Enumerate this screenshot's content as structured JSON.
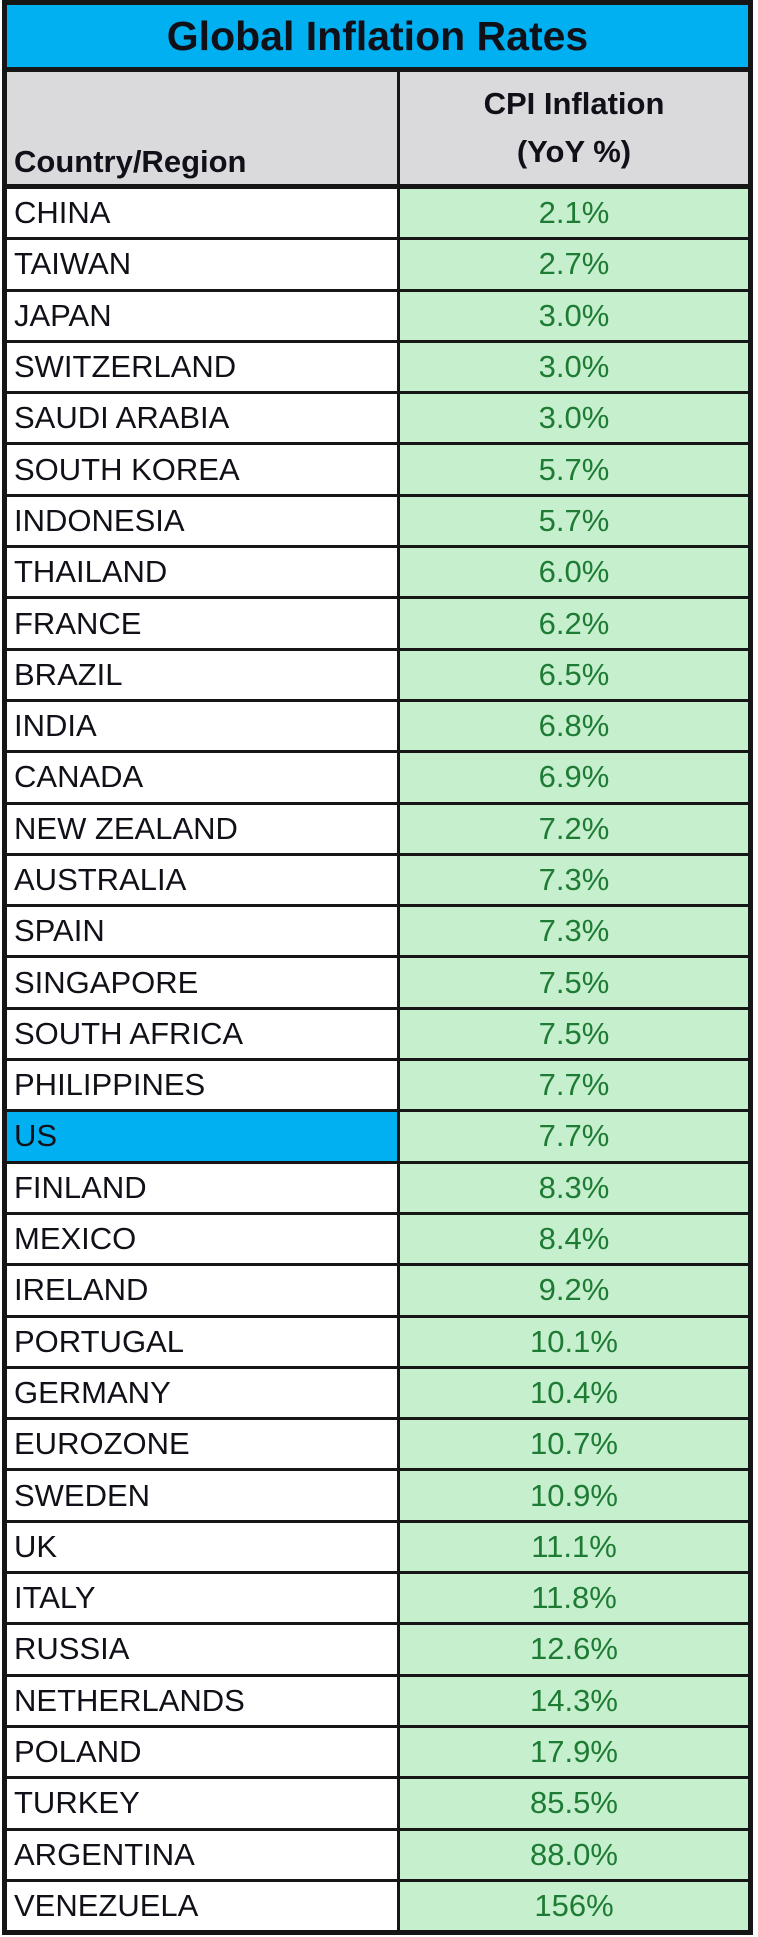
{
  "title": "Global Inflation Rates",
  "header": {
    "country_column": "Country/Region",
    "value_column": "CPI Inflation\n(YoY %)"
  },
  "colors": {
    "title_bg": "#00B0F0",
    "header_bg": "#DAD9DC",
    "value_bg": "#C6EFCE",
    "value_text": "#1E7B34",
    "highlight_bg": "#00B0F0",
    "border": "#161616",
    "text": "#101018"
  },
  "rows": [
    {
      "country": "CHINA",
      "value": "2.1%",
      "highlight": false
    },
    {
      "country": "TAIWAN",
      "value": "2.7%",
      "highlight": false
    },
    {
      "country": "JAPAN",
      "value": "3.0%",
      "highlight": false
    },
    {
      "country": "SWITZERLAND",
      "value": "3.0%",
      "highlight": false
    },
    {
      "country": "SAUDI ARABIA",
      "value": "3.0%",
      "highlight": false
    },
    {
      "country": "SOUTH KOREA",
      "value": "5.7%",
      "highlight": false
    },
    {
      "country": "INDONESIA",
      "value": "5.7%",
      "highlight": false
    },
    {
      "country": "THAILAND",
      "value": "6.0%",
      "highlight": false
    },
    {
      "country": "FRANCE",
      "value": "6.2%",
      "highlight": false
    },
    {
      "country": "BRAZIL",
      "value": "6.5%",
      "highlight": false
    },
    {
      "country": "INDIA",
      "value": "6.8%",
      "highlight": false
    },
    {
      "country": "CANADA",
      "value": "6.9%",
      "highlight": false
    },
    {
      "country": "NEW ZEALAND",
      "value": "7.2%",
      "highlight": false
    },
    {
      "country": "AUSTRALIA",
      "value": "7.3%",
      "highlight": false
    },
    {
      "country": "SPAIN",
      "value": "7.3%",
      "highlight": false
    },
    {
      "country": "SINGAPORE",
      "value": "7.5%",
      "highlight": false
    },
    {
      "country": "SOUTH AFRICA",
      "value": "7.5%",
      "highlight": false
    },
    {
      "country": "PHILIPPINES",
      "value": "7.7%",
      "highlight": false
    },
    {
      "country": "US",
      "value": "7.7%",
      "highlight": true
    },
    {
      "country": "FINLAND",
      "value": "8.3%",
      "highlight": false
    },
    {
      "country": "MEXICO",
      "value": "8.4%",
      "highlight": false
    },
    {
      "country": "IRELAND",
      "value": "9.2%",
      "highlight": false
    },
    {
      "country": "PORTUGAL",
      "value": "10.1%",
      "highlight": false
    },
    {
      "country": "GERMANY",
      "value": "10.4%",
      "highlight": false
    },
    {
      "country": "EUROZONE",
      "value": "10.7%",
      "highlight": false
    },
    {
      "country": "SWEDEN",
      "value": "10.9%",
      "highlight": false
    },
    {
      "country": "UK",
      "value": "11.1%",
      "highlight": false
    },
    {
      "country": "ITALY",
      "value": "11.8%",
      "highlight": false
    },
    {
      "country": "RUSSIA",
      "value": "12.6%",
      "highlight": false
    },
    {
      "country": "NETHERLANDS",
      "value": "14.3%",
      "highlight": false
    },
    {
      "country": "POLAND",
      "value": "17.9%",
      "highlight": false
    },
    {
      "country": "TURKEY",
      "value": "85.5%",
      "highlight": false
    },
    {
      "country": "ARGENTINA",
      "value": "88.0%",
      "highlight": false
    },
    {
      "country": "VENEZUELA",
      "value": "156%",
      "highlight": false
    }
  ],
  "chart_data": {
    "type": "table",
    "title": "Global Inflation Rates",
    "columns": [
      "Country/Region",
      "CPI Inflation (YoY %)"
    ],
    "categories": [
      "CHINA",
      "TAIWAN",
      "JAPAN",
      "SWITZERLAND",
      "SAUDI ARABIA",
      "SOUTH KOREA",
      "INDONESIA",
      "THAILAND",
      "FRANCE",
      "BRAZIL",
      "INDIA",
      "CANADA",
      "NEW ZEALAND",
      "AUSTRALIA",
      "SPAIN",
      "SINGAPORE",
      "SOUTH AFRICA",
      "PHILIPPINES",
      "US",
      "FINLAND",
      "MEXICO",
      "IRELAND",
      "PORTUGAL",
      "GERMANY",
      "EUROZONE",
      "SWEDEN",
      "UK",
      "ITALY",
      "RUSSIA",
      "NETHERLANDS",
      "POLAND",
      "TURKEY",
      "ARGENTINA",
      "VENEZUELA"
    ],
    "values": [
      2.1,
      2.7,
      3.0,
      3.0,
      3.0,
      5.7,
      5.7,
      6.0,
      6.2,
      6.5,
      6.8,
      6.9,
      7.2,
      7.3,
      7.3,
      7.5,
      7.5,
      7.7,
      7.7,
      8.3,
      8.4,
      9.2,
      10.1,
      10.4,
      10.7,
      10.9,
      11.1,
      11.8,
      12.6,
      14.3,
      17.9,
      85.5,
      88.0,
      156
    ],
    "highlighted_row": "US",
    "sort_order": "ascending by value"
  }
}
